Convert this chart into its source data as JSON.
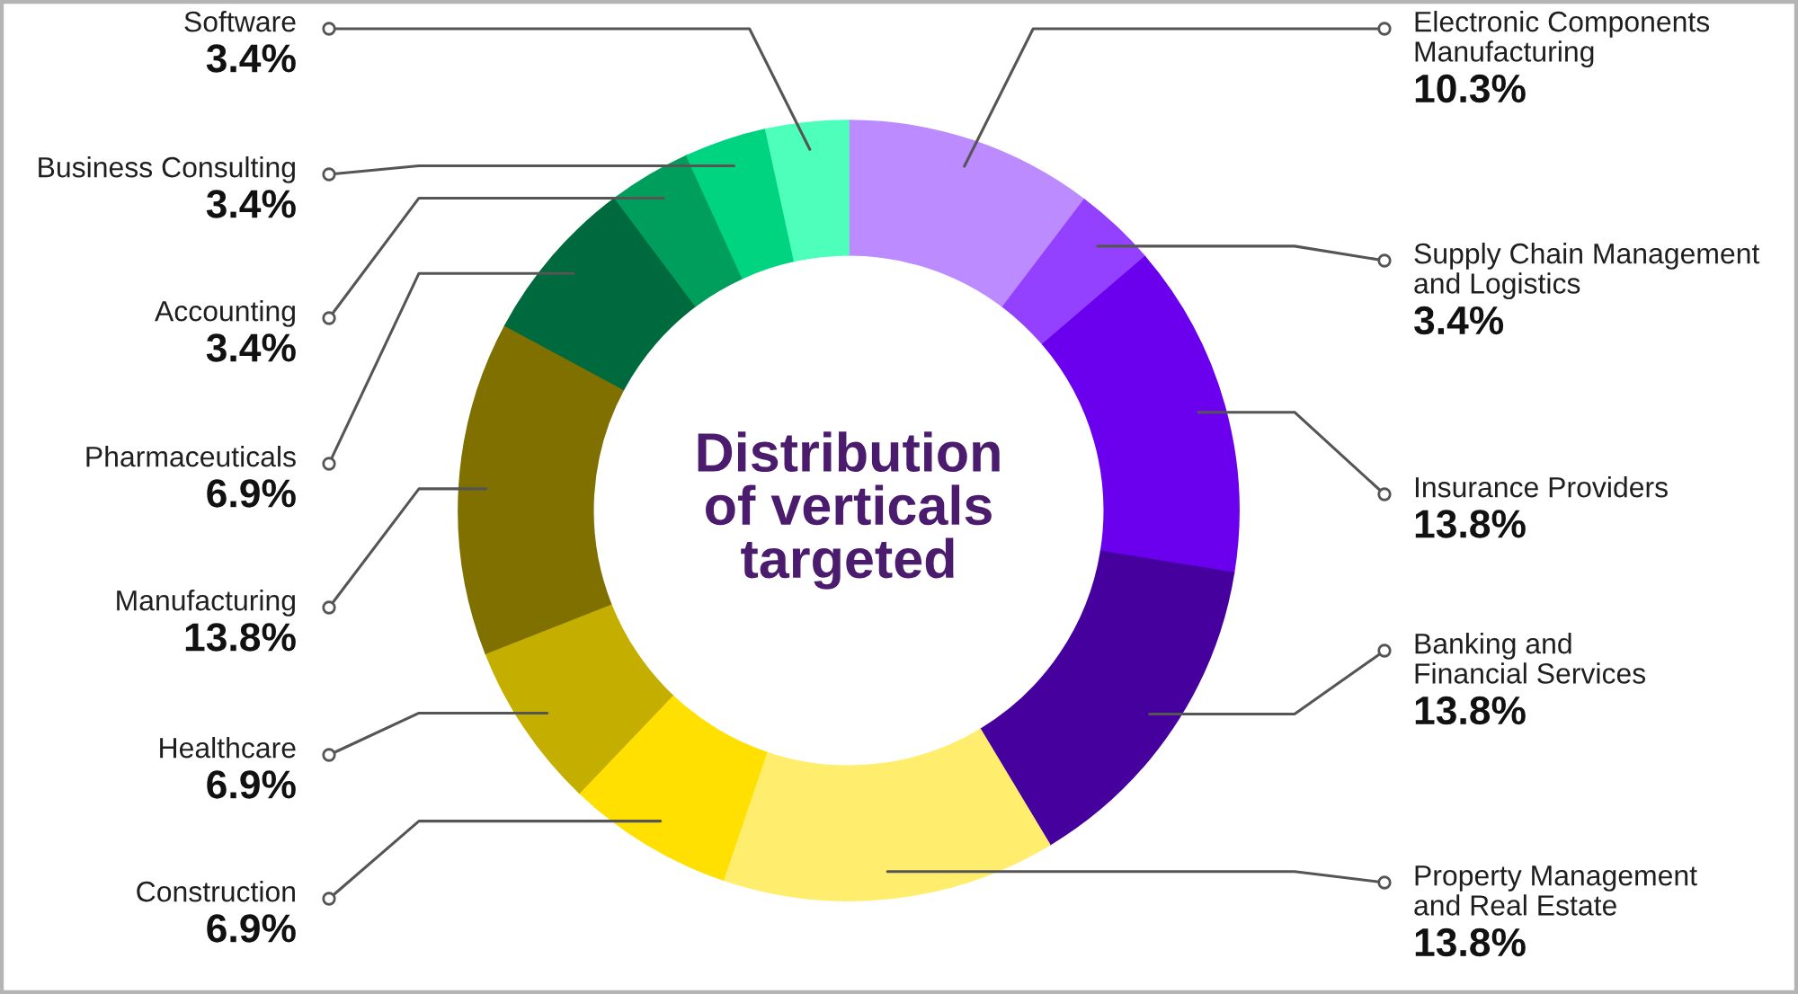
{
  "chart_data": {
    "type": "donut",
    "title": "Distribution of verticals targeted",
    "categories": [
      "Electronic Components Manufacturing",
      "Supply Chain Management and Logistics",
      "Insurance Providers",
      "Banking and Financial Services",
      "Property Management and Real Estate",
      "Construction",
      "Healthcare",
      "Manufacturing",
      "Pharmaceuticals",
      "Accounting",
      "Business Consulting",
      "Software"
    ],
    "values": [
      10.3,
      3.4,
      13.8,
      13.8,
      13.8,
      6.9,
      6.9,
      13.8,
      6.9,
      3.4,
      3.4,
      3.4
    ],
    "value_labels": [
      "10.3%",
      "3.4%",
      "13.8%",
      "13.8%",
      "13.8%",
      "6.9%",
      "6.9%",
      "13.8%",
      "6.9%",
      "3.4%",
      "3.4%",
      "3.4%"
    ],
    "colors": [
      "#bb8bff",
      "#9340ff",
      "#6a00ee",
      "#46009e",
      "#ffee6e",
      "#ffe000",
      "#c4ae00",
      "#7f7000",
      "#006a3f",
      "#009e5c",
      "#00d480",
      "#4dffbb"
    ]
  }
}
